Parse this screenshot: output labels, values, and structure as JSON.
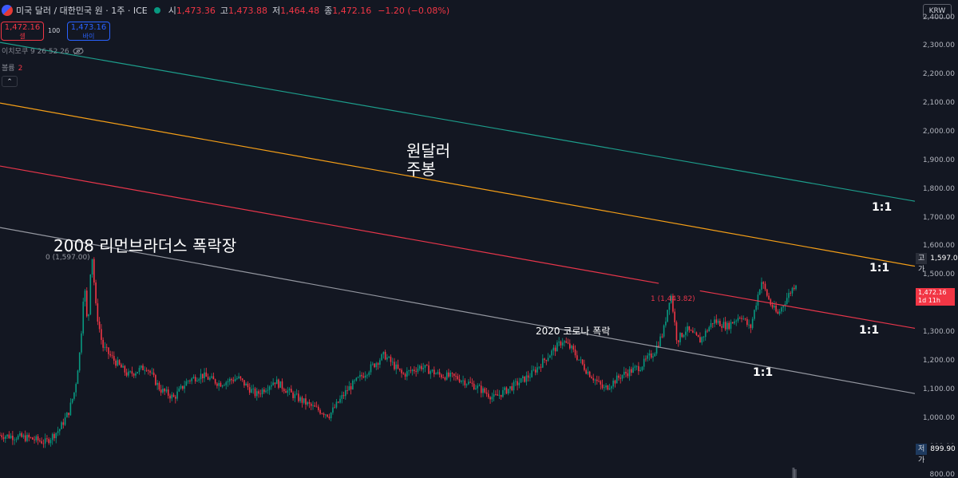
{
  "header": {
    "symbol": "미국 달러 / 대한민국 원 · 1주 · ICE",
    "open_label": "시",
    "open": "1,473.36",
    "high_label": "고",
    "high": "1,473.88",
    "low_label": "저",
    "low": "1,464.48",
    "close_label": "종",
    "close": "1,472.16",
    "change": "−1.20 (−0.08%)"
  },
  "trade": {
    "sell_price": "1,472.16",
    "sell_label": "셀",
    "spread": "100",
    "buy_price": "1,473.16",
    "buy_label": "바이"
  },
  "indicators": {
    "ichimoku": "이치모쿠 9 26 52 26",
    "volume_label": "볼륨",
    "volume_value": "2",
    "collapse_glyph": "⌃"
  },
  "currency_button": "KRW",
  "annotations": {
    "title_line1": "원달러",
    "title_line2": "주봉",
    "lehman": "2008 리먼브라더스 폭락장",
    "corona": "2020 코로나 폭락",
    "ratio": "1:1",
    "fib0": "0 (1,597.00)",
    "fib1": "1 (1,443.82)"
  },
  "price_labels": {
    "high_tag": "고가",
    "high_value": "1,597.00",
    "low_tag": "저가",
    "low_value": "899.90",
    "last_value": "1,472.16",
    "countdown": "1d 11h"
  },
  "colors": {
    "background": "#131722",
    "up": "#089981",
    "down": "#f23645",
    "teal_line": "#1d9e8c",
    "orange_line": "#f59f17",
    "red_line": "#e8364b",
    "gray_line": "#9598a1"
  },
  "chart_data": {
    "type": "line",
    "title": "",
    "y_axis_ticks": [
      2400,
      2300,
      2200,
      2100,
      2000,
      1900,
      1800,
      1700,
      1600,
      1500,
      1400,
      1300,
      1200,
      1100,
      1000,
      900,
      800
    ],
    "ylim": [
      790,
      2460
    ],
    "price_path": [
      {
        "x": 0.0,
        "y": 940
      },
      {
        "x": 0.03,
        "y": 930
      },
      {
        "x": 0.05,
        "y": 915
      },
      {
        "x": 0.065,
        "y": 960
      },
      {
        "x": 0.075,
        "y": 1020
      },
      {
        "x": 0.082,
        "y": 1100
      },
      {
        "x": 0.088,
        "y": 1250
      },
      {
        "x": 0.092,
        "y": 1480
      },
      {
        "x": 0.096,
        "y": 1300
      },
      {
        "x": 0.1,
        "y": 1597
      },
      {
        "x": 0.105,
        "y": 1380
      },
      {
        "x": 0.112,
        "y": 1250
      },
      {
        "x": 0.125,
        "y": 1200
      },
      {
        "x": 0.14,
        "y": 1150
      },
      {
        "x": 0.16,
        "y": 1180
      },
      {
        "x": 0.175,
        "y": 1100
      },
      {
        "x": 0.19,
        "y": 1070
      },
      {
        "x": 0.205,
        "y": 1130
      },
      {
        "x": 0.22,
        "y": 1150
      },
      {
        "x": 0.24,
        "y": 1120
      },
      {
        "x": 0.26,
        "y": 1140
      },
      {
        "x": 0.28,
        "y": 1080
      },
      {
        "x": 0.3,
        "y": 1130
      },
      {
        "x": 0.32,
        "y": 1080
      },
      {
        "x": 0.34,
        "y": 1040
      },
      {
        "x": 0.36,
        "y": 1010
      },
      {
        "x": 0.38,
        "y": 1100
      },
      {
        "x": 0.4,
        "y": 1160
      },
      {
        "x": 0.42,
        "y": 1220
      },
      {
        "x": 0.44,
        "y": 1150
      },
      {
        "x": 0.46,
        "y": 1180
      },
      {
        "x": 0.48,
        "y": 1150
      },
      {
        "x": 0.5,
        "y": 1140
      },
      {
        "x": 0.52,
        "y": 1110
      },
      {
        "x": 0.54,
        "y": 1070
      },
      {
        "x": 0.56,
        "y": 1110
      },
      {
        "x": 0.58,
        "y": 1150
      },
      {
        "x": 0.6,
        "y": 1220
      },
      {
        "x": 0.615,
        "y": 1270
      },
      {
        "x": 0.625,
        "y": 1240
      },
      {
        "x": 0.64,
        "y": 1170
      },
      {
        "x": 0.66,
        "y": 1100
      },
      {
        "x": 0.68,
        "y": 1150
      },
      {
        "x": 0.7,
        "y": 1180
      },
      {
        "x": 0.715,
        "y": 1230
      },
      {
        "x": 0.725,
        "y": 1300
      },
      {
        "x": 0.733,
        "y": 1440
      },
      {
        "x": 0.74,
        "y": 1270
      },
      {
        "x": 0.75,
        "y": 1310
      },
      {
        "x": 0.765,
        "y": 1270
      },
      {
        "x": 0.78,
        "y": 1340
      },
      {
        "x": 0.795,
        "y": 1320
      },
      {
        "x": 0.81,
        "y": 1360
      },
      {
        "x": 0.82,
        "y": 1310
      },
      {
        "x": 0.832,
        "y": 1480
      },
      {
        "x": 0.842,
        "y": 1400
      },
      {
        "x": 0.85,
        "y": 1360
      },
      {
        "x": 0.86,
        "y": 1420
      },
      {
        "x": 0.87,
        "y": 1472
      }
    ],
    "trend_lines": [
      {
        "color": "#1d9e8c",
        "from": {
          "x": 0.0,
          "y": 2312
        },
        "to": {
          "x": 1.0,
          "y": 1757
        }
      },
      {
        "color": "#f59f17",
        "from": {
          "x": 0.0,
          "y": 2100
        },
        "to": {
          "x": 1.0,
          "y": 1530
        }
      },
      {
        "color": "#e8364b",
        "from": {
          "x": 0.0,
          "y": 1880
        },
        "to": {
          "x": 0.72,
          "y": 1470
        }
      },
      {
        "color": "#e8364b",
        "from": {
          "x": 0.765,
          "y": 1444
        },
        "to": {
          "x": 1.0,
          "y": 1313
        }
      },
      {
        "color": "#9598a1",
        "from": {
          "x": 0.0,
          "y": 1665
        },
        "to": {
          "x": 1.0,
          "y": 1085
        }
      }
    ],
    "levels": [
      {
        "name": "고가",
        "value": 1597.0
      },
      {
        "name": "저가",
        "value": 899.9
      },
      {
        "name": "last",
        "value": 1472.16
      }
    ]
  }
}
